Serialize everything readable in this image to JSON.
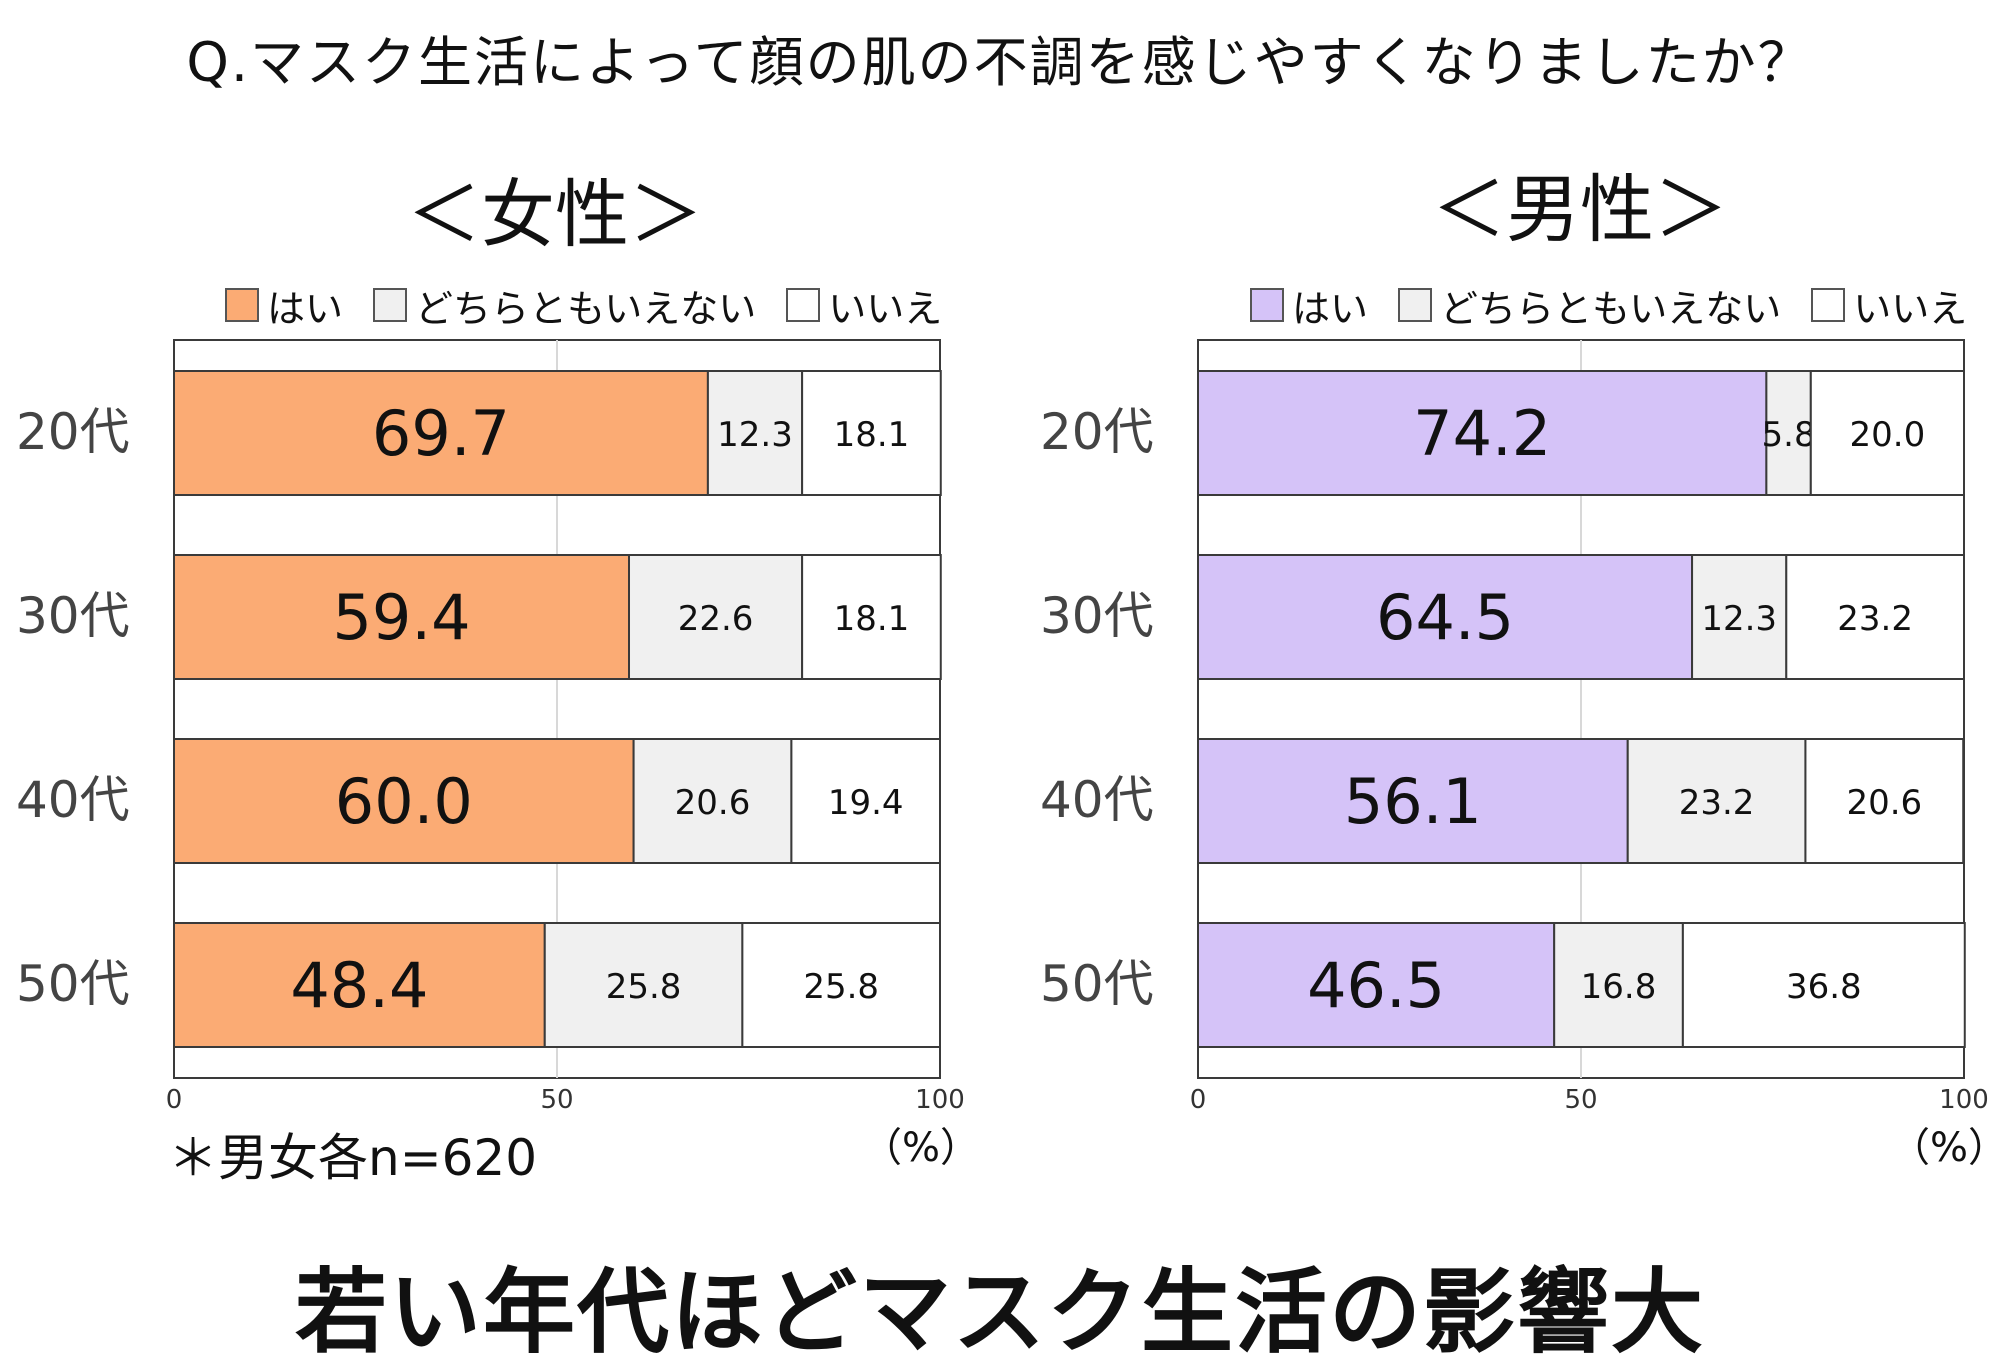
{
  "question": "Q.マスク生活によって顔の肌の不調を感じやすくなりましたか？",
  "note": "＊男女各n=620",
  "conclusion": "若い年代ほどマスク生活の影響大",
  "colors": {
    "female_yes": "#FBAB74",
    "male_yes": "#D5C3F8",
    "neutral": "#F0F0F0",
    "no": "#FFFFFF",
    "border": "#3a3a3a",
    "grid": "#d8d8d8"
  },
  "chart_data": [
    {
      "type": "bar",
      "orientation": "horizontal",
      "stacked": true,
      "title": "＜女性＞",
      "unit_label": "（%）",
      "categories": [
        "20代",
        "30代",
        "40代",
        "50代"
      ],
      "series": [
        {
          "name": "はい",
          "color": "#FBAB74",
          "values": [
            69.7,
            59.4,
            60.0,
            48.4
          ]
        },
        {
          "name": "どちらともいえない",
          "color": "#F0F0F0",
          "values": [
            12.3,
            22.6,
            20.6,
            25.8
          ]
        },
        {
          "name": "いいえ",
          "color": "#FFFFFF",
          "values": [
            18.1,
            18.1,
            19.4,
            25.8
          ]
        }
      ],
      "xlim": [
        0,
        100
      ],
      "xticks": [
        0,
        50,
        100
      ],
      "grid": true,
      "legend": "top"
    },
    {
      "type": "bar",
      "orientation": "horizontal",
      "stacked": true,
      "title": "＜男性＞",
      "unit_label": "（%）",
      "categories": [
        "20代",
        "30代",
        "40代",
        "50代"
      ],
      "series": [
        {
          "name": "はい",
          "color": "#D5C3F8",
          "values": [
            74.2,
            64.5,
            56.1,
            46.5
          ]
        },
        {
          "name": "どちらともいえない",
          "color": "#F0F0F0",
          "values": [
            5.8,
            12.3,
            23.2,
            16.8
          ]
        },
        {
          "name": "いいえ",
          "color": "#FFFFFF",
          "values": [
            20.0,
            23.2,
            20.6,
            36.8
          ]
        }
      ],
      "xlim": [
        0,
        100
      ],
      "xticks": [
        0,
        50,
        100
      ],
      "grid": true,
      "legend": "top"
    }
  ]
}
